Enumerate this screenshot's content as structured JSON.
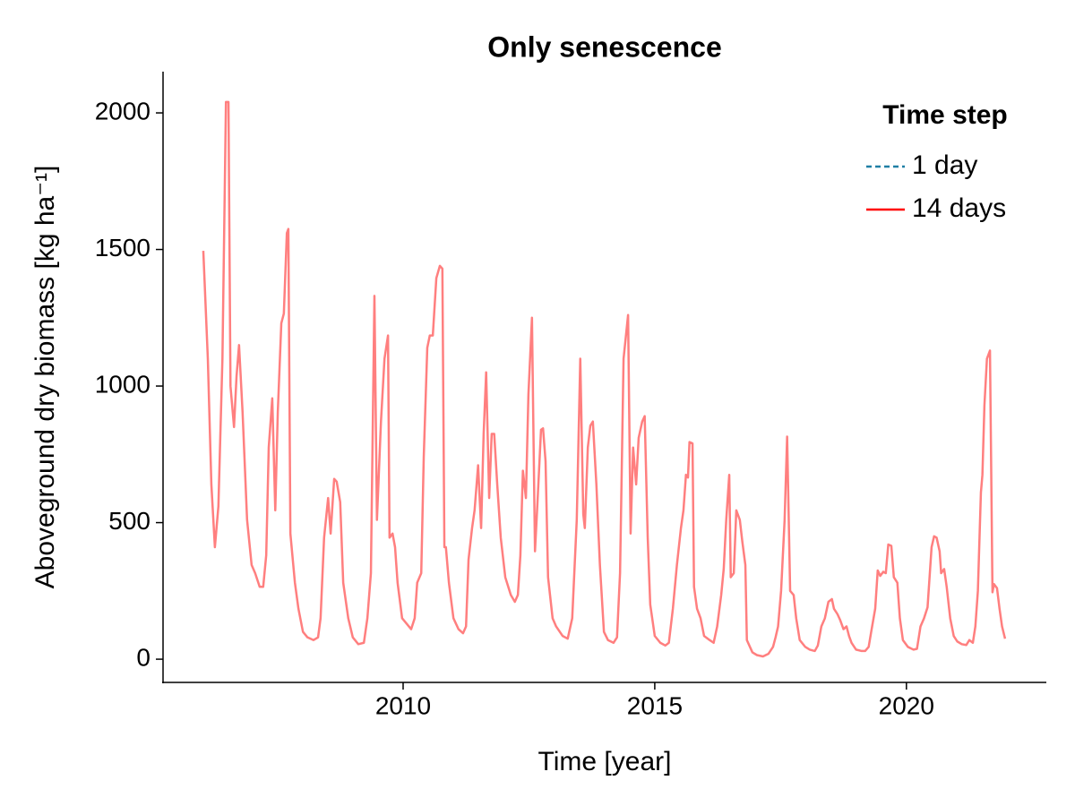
{
  "chart_data": {
    "type": "line",
    "title": "Only senescence",
    "xlabel": "Time [year]",
    "ylabel": "Aboveground dry biomass [kg ha⁻¹]",
    "xlim": [
      2005.23,
      2022.78
    ],
    "ylim": [
      -85,
      2151
    ],
    "xticks": [
      2010,
      2015,
      2020
    ],
    "yticks": [
      0,
      500,
      1000,
      1500,
      2000
    ],
    "grid": false,
    "legend_title": "Time step",
    "legend": "upper right",
    "x": [
      2006.03,
      2006.12,
      2006.19,
      2006.26,
      2006.33,
      2006.41,
      2006.48,
      2006.53,
      2006.57,
      2006.64,
      2006.69,
      2006.74,
      2006.81,
      2006.9,
      2006.99,
      2007.06,
      2007.15,
      2007.22,
      2007.28,
      2007.33,
      2007.4,
      2007.46,
      2007.51,
      2007.58,
      2007.63,
      2007.69,
      2007.72,
      2007.76,
      2007.85,
      2007.92,
      2008.01,
      2008.1,
      2008.22,
      2008.31,
      2008.36,
      2008.43,
      2008.51,
      2008.56,
      2008.63,
      2008.68,
      2008.75,
      2008.81,
      2008.91,
      2009.0,
      2009.11,
      2009.22,
      2009.29,
      2009.36,
      2009.43,
      2009.48,
      2009.56,
      2009.63,
      2009.7,
      2009.73,
      2009.79,
      2009.84,
      2009.89,
      2009.98,
      2010.07,
      2010.16,
      2010.23,
      2010.28,
      2010.36,
      2010.41,
      2010.48,
      2010.53,
      2010.59,
      2010.66,
      2010.73,
      2010.78,
      2010.82,
      2010.85,
      2010.91,
      2011.0,
      2011.1,
      2011.19,
      2011.25,
      2011.3,
      2011.37,
      2011.42,
      2011.49,
      2011.55,
      2011.6,
      2011.65,
      2011.71,
      2011.76,
      2011.81,
      2011.87,
      2011.94,
      2012.03,
      2012.14,
      2012.22,
      2012.28,
      2012.33,
      2012.38,
      2012.44,
      2012.49,
      2012.56,
      2012.62,
      2012.67,
      2012.74,
      2012.78,
      2012.83,
      2012.88,
      2012.97,
      2013.04,
      2013.17,
      2013.27,
      2013.36,
      2013.45,
      2013.52,
      2013.58,
      2013.61,
      2013.67,
      2013.72,
      2013.77,
      2013.84,
      2013.91,
      2013.99,
      2014.07,
      2014.18,
      2014.25,
      2014.31,
      2014.38,
      2014.47,
      2014.52,
      2014.57,
      2014.63,
      2014.68,
      2014.75,
      2014.8,
      2014.86,
      2014.91,
      2015.0,
      2015.11,
      2015.21,
      2015.28,
      2015.36,
      2015.44,
      2015.52,
      2015.57,
      2015.62,
      2015.66,
      2015.69,
      2015.75,
      2015.78,
      2015.84,
      2015.91,
      2015.98,
      2016.09,
      2016.17,
      2016.24,
      2016.32,
      2016.37,
      2016.42,
      2016.48,
      2016.51,
      2016.57,
      2016.62,
      2016.69,
      2016.74,
      2016.8,
      2016.83,
      2016.94,
      2017.03,
      2017.15,
      2017.26,
      2017.35,
      2017.4,
      2017.45,
      2017.51,
      2017.58,
      2017.63,
      2017.69,
      2017.76,
      2017.81,
      2017.88,
      2017.99,
      2018.08,
      2018.18,
      2018.24,
      2018.31,
      2018.38,
      2018.45,
      2018.52,
      2018.56,
      2018.63,
      2018.68,
      2018.75,
      2018.81,
      2018.86,
      2018.91,
      2019.0,
      2019.11,
      2019.18,
      2019.25,
      2019.3,
      2019.38,
      2019.43,
      2019.48,
      2019.54,
      2019.59,
      2019.64,
      2019.7,
      2019.75,
      2019.82,
      2019.87,
      2019.93,
      2020.03,
      2020.14,
      2020.21,
      2020.28,
      2020.35,
      2020.42,
      2020.5,
      2020.55,
      2020.6,
      2020.66,
      2020.69,
      2020.75,
      2020.8,
      2020.87,
      2020.94,
      2021.01,
      2021.1,
      2021.19,
      2021.25,
      2021.32,
      2021.37,
      2021.42,
      2021.48,
      2021.51,
      2021.55,
      2021.6,
      2021.66,
      2021.71,
      2021.74,
      2021.8,
      2021.85,
      2021.9,
      2021.96
    ],
    "series": [
      {
        "name": "1 day",
        "color": "#1f7fa5",
        "dashed": true
      },
      {
        "name": "14 days",
        "color": "#ff0000",
        "dashed": false,
        "values": [
          1495,
          1100,
          640,
          410,
          560,
          1100,
          2040,
          2040,
          1000,
          850,
          1035,
          1150,
          905,
          510,
          345,
          315,
          265,
          265,
          380,
          775,
          955,
          545,
          905,
          1230,
          1265,
          1560,
          1575,
          460,
          280,
          185,
          100,
          80,
          70,
          80,
          150,
          445,
          590,
          460,
          660,
          650,
          575,
          280,
          150,
          80,
          55,
          60,
          150,
          315,
          1330,
          510,
          870,
          1100,
          1185,
          445,
          460,
          410,
          280,
          150,
          130,
          110,
          150,
          280,
          315,
          740,
          1140,
          1185,
          1185,
          1395,
          1440,
          1430,
          410,
          410,
          280,
          150,
          110,
          95,
          120,
          365,
          480,
          545,
          710,
          480,
          825,
          1050,
          590,
          825,
          825,
          640,
          445,
          300,
          235,
          210,
          235,
          380,
          690,
          590,
          970,
          1250,
          395,
          575,
          840,
          845,
          725,
          300,
          150,
          120,
          85,
          75,
          150,
          510,
          1100,
          530,
          480,
          775,
          855,
          870,
          640,
          345,
          100,
          70,
          60,
          80,
          315,
          1100,
          1260,
          460,
          775,
          640,
          810,
          870,
          890,
          445,
          200,
          85,
          60,
          50,
          60,
          185,
          345,
          480,
          545,
          675,
          665,
          795,
          790,
          265,
          185,
          150,
          85,
          70,
          60,
          120,
          235,
          330,
          510,
          675,
          300,
          315,
          545,
          510,
          430,
          345,
          70,
          25,
          15,
          10,
          20,
          45,
          80,
          120,
          250,
          510,
          815,
          250,
          235,
          150,
          70,
          45,
          35,
          30,
          50,
          120,
          150,
          210,
          220,
          185,
          165,
          145,
          110,
          120,
          85,
          60,
          35,
          30,
          30,
          45,
          100,
          185,
          325,
          305,
          320,
          315,
          420,
          415,
          300,
          280,
          150,
          70,
          45,
          35,
          38,
          120,
          150,
          190,
          410,
          450,
          445,
          395,
          315,
          330,
          265,
          150,
          85,
          65,
          55,
          52,
          70,
          60,
          120,
          250,
          610,
          675,
          930,
          1100,
          1130,
          245,
          275,
          260,
          185,
          120,
          75
        ]
      }
    ]
  }
}
